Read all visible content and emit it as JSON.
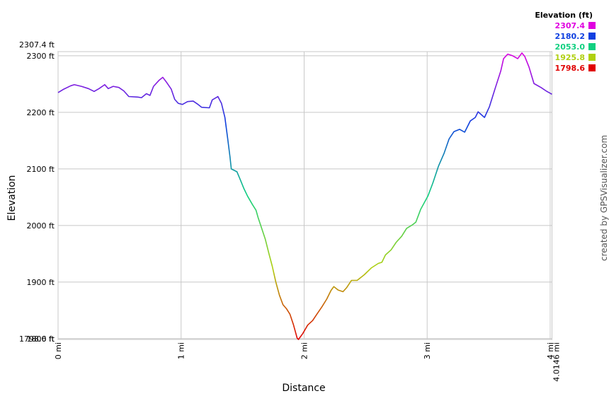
{
  "chart_data": {
    "type": "line",
    "legend_title": "Elevation (ft)",
    "x_label": "Distance",
    "y_label": "Elevation",
    "credit": "created by GPSVisualizer.com",
    "grid": true,
    "xlim": [
      0,
      4.0146
    ],
    "ylim": [
      1798.6,
      2307.4
    ],
    "xticks": [
      {
        "value": 0,
        "label": "0 mi"
      },
      {
        "value": 1,
        "label": "1 mi"
      },
      {
        "value": 2,
        "label": "2 mi"
      },
      {
        "value": 3,
        "label": "3 mi"
      },
      {
        "value": 4,
        "label": "4 mi"
      },
      {
        "value": 4.0146,
        "label": "4.0146 mi"
      }
    ],
    "yticks": [
      {
        "value": 1798.6,
        "label": "1798.6 ft"
      },
      {
        "value": 1800,
        "label": "1800 ft"
      },
      {
        "value": 1900,
        "label": "1900 ft"
      },
      {
        "value": 2000,
        "label": "2000 ft"
      },
      {
        "value": 2100,
        "label": "2100 ft"
      },
      {
        "value": 2200,
        "label": "2200 ft"
      },
      {
        "value": 2300,
        "label": "2300 ft"
      },
      {
        "value": 2307.4,
        "label": "2307.4 ft"
      }
    ],
    "color_scale": [
      {
        "value": 2307.4,
        "color": "#e000e0"
      },
      {
        "value": 2180.2,
        "color": "#1040e0"
      },
      {
        "value": 2053.0,
        "label": "2053.0",
        "color": "#10d080"
      },
      {
        "value": 1925.8,
        "color": "#b0d010"
      },
      {
        "value": 1798.6,
        "color": "#e00000"
      }
    ],
    "x": [
      0,
      0.046,
      0.103,
      0.132,
      0.19,
      0.247,
      0.293,
      0.333,
      0.379,
      0.408,
      0.448,
      0.494,
      0.534,
      0.575,
      0.649,
      0.678,
      0.718,
      0.747,
      0.776,
      0.822,
      0.851,
      0.879,
      0.92,
      0.948,
      0.977,
      1.011,
      1.052,
      1.098,
      1.138,
      1.167,
      1.23,
      1.253,
      1.299,
      1.328,
      1.356,
      1.379,
      1.397,
      1.408,
      1.454,
      1.483,
      1.511,
      1.54,
      1.58,
      1.609,
      1.626,
      1.655,
      1.684,
      1.713,
      1.741,
      1.77,
      1.799,
      1.828,
      1.856,
      1.885,
      1.914,
      1.943,
      1.954,
      1.989,
      2.029,
      2.069,
      2.103,
      2.144,
      2.184,
      2.218,
      2.241,
      2.276,
      2.316,
      2.345,
      2.385,
      2.431,
      2.489,
      2.546,
      2.603,
      2.632,
      2.661,
      2.707,
      2.747,
      2.793,
      2.833,
      2.879,
      2.908,
      2.948,
      3.006,
      3.046,
      3.092,
      3.138,
      3.178,
      3.218,
      3.264,
      3.305,
      3.351,
      3.391,
      3.414,
      3.466,
      3.506,
      3.552,
      3.598,
      3.621,
      3.655,
      3.695,
      3.736,
      3.77,
      3.793,
      3.828,
      3.868,
      3.925,
      3.966,
      4.0146
    ],
    "values": [
      2235,
      2241,
      2247,
      2249,
      2246,
      2242,
      2237,
      2242,
      2249,
      2242,
      2246,
      2244,
      2238,
      2228,
      2227,
      2226,
      2233,
      2230,
      2246,
      2257,
      2262,
      2254,
      2241,
      2223,
      2216,
      2214,
      2219,
      2220,
      2214,
      2209,
      2208,
      2222,
      2228,
      2216,
      2191,
      2153,
      2122,
      2100,
      2095,
      2080,
      2065,
      2052,
      2037,
      2027,
      2014,
      1995,
      1976,
      1951,
      1928,
      1900,
      1877,
      1860,
      1853,
      1843,
      1824,
      1801,
      1798.6,
      1809,
      1824,
      1832,
      1843,
      1856,
      1870,
      1885,
      1892,
      1886,
      1883,
      1890,
      1903,
      1903,
      1913,
      1925,
      1933,
      1935,
      1948,
      1957,
      1970,
      1981,
      1995,
      2001,
      2006,
      2029,
      2052,
      2075,
      2105,
      2128,
      2153,
      2166,
      2170,
      2165,
      2185,
      2191,
      2201,
      2191,
      2210,
      2242,
      2273,
      2295,
      2303,
      2300,
      2295,
      2305,
      2299,
      2280,
      2251,
      2244,
      2238,
      2232
    ]
  }
}
